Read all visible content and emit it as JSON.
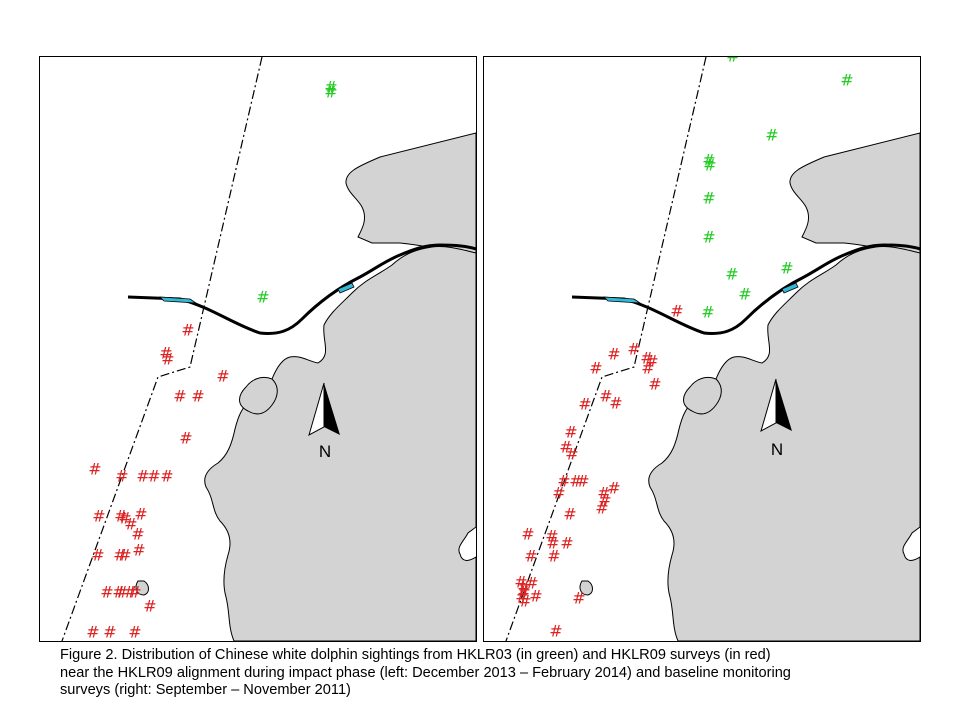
{
  "figure": {
    "caption_lines": [
      "Figure 2.  Distribution of Chinese white dolphin sightings from HKLR03 (in green) and HKLR09 surveys (in red)",
      "near the HKLR09 alignment during impact phase (left: December 2013 – February 2014) and baseline monitoring",
      "surveys (right: September – November 2011)"
    ]
  },
  "colors": {
    "land": "#d3d3d3",
    "water": "#ffffff",
    "hklr03_marker": "#22cc22",
    "hklr09_marker": "#dd2222",
    "alignment_line": "#000000",
    "reclamation_highlight": "#33b8d8"
  },
  "north_arrow": {
    "label": "N",
    "icon": "north-arrow-icon"
  },
  "marker": {
    "symbol": "#",
    "icon": "hash-marker-icon"
  },
  "panels": [
    {
      "id": "left",
      "period": "December 2013 – February 2014",
      "phase": "impact",
      "hklr03_sightings_count": 3,
      "hklr09_sightings_count": 38
    },
    {
      "id": "right",
      "period": "September – November 2011",
      "phase": "baseline",
      "hklr03_sightings_count": 12,
      "hklr09_sightings_count": 58
    }
  ]
}
